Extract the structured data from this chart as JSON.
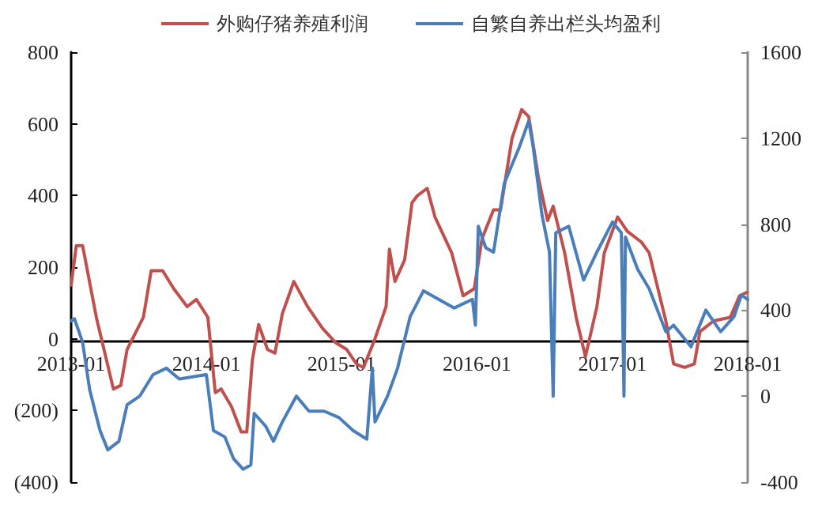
{
  "chart_data": {
    "type": "line",
    "series": [
      {
        "name": "外购仔猪养殖利润",
        "color": "#c0504d",
        "x": [
          "2013-01-01",
          "2013-01-15",
          "2013-02-01",
          "2013-03-10",
          "2013-04-25",
          "2013-05-15",
          "2013-06-01",
          "2013-07-15",
          "2013-08-05",
          "2013-09-05",
          "2013-10-05",
          "2013-11-10",
          "2013-12-05",
          "2014-01-05",
          "2014-01-25",
          "2014-02-10",
          "2014-03-10",
          "2014-04-05",
          "2014-04-20",
          "2014-05-05",
          "2014-05-22",
          "2014-06-15",
          "2014-07-05",
          "2014-07-25",
          "2014-08-25",
          "2014-10-01",
          "2014-11-10",
          "2014-12-15",
          "2015-01-15",
          "2015-02-10",
          "2015-03-01",
          "2015-04-01",
          "2015-05-01",
          "2015-05-10",
          "2015-05-25",
          "2015-06-20",
          "2015-07-10",
          "2015-07-25",
          "2015-08-20",
          "2015-09-10",
          "2015-10-25",
          "2015-11-25",
          "2015-12-25",
          "2016-01-15",
          "2016-02-15",
          "2016-03-05",
          "2016-04-05",
          "2016-05-01",
          "2016-05-20",
          "2016-06-15",
          "2016-07-10",
          "2016-07-25",
          "2016-08-25",
          "2016-09-25",
          "2016-10-20",
          "2016-11-20",
          "2016-12-10",
          "2017-01-15",
          "2017-02-10",
          "2017-03-20",
          "2017-04-10",
          "2017-05-25",
          "2017-06-15",
          "2017-07-15",
          "2017-08-10",
          "2017-08-25",
          "2017-10-01",
          "2017-11-15",
          "2017-12-10",
          "2017-12-30"
        ],
        "values": [
          150,
          260,
          260,
          60,
          -140,
          -130,
          -30,
          60,
          190,
          190,
          140,
          90,
          110,
          60,
          -150,
          -140,
          -190,
          -260,
          -260,
          -60,
          40,
          -30,
          -40,
          70,
          160,
          90,
          30,
          -10,
          -30,
          -70,
          -80,
          0,
          90,
          250,
          160,
          220,
          380,
          400,
          420,
          340,
          240,
          120,
          140,
          280,
          360,
          360,
          560,
          640,
          620,
          450,
          330,
          370,
          240,
          60,
          -50,
          90,
          240,
          340,
          300,
          270,
          240,
          50,
          -70,
          -80,
          -70,
          20,
          50,
          60,
          120,
          130
        ]
      },
      {
        "name": "自繁自养出栏头均盈利",
        "color": "#4a7ebb",
        "axis": "y2",
        "x": [
          "2013-01-01",
          "2013-01-10",
          "2013-02-01",
          "2013-02-20",
          "2013-03-20",
          "2013-04-10",
          "2013-05-10",
          "2013-06-01",
          "2013-07-05",
          "2013-08-10",
          "2013-09-15",
          "2013-10-20",
          "2014-01-01",
          "2014-01-20",
          "2014-02-20",
          "2014-03-15",
          "2014-04-10",
          "2014-05-01",
          "2014-05-10",
          "2014-06-10",
          "2014-07-01",
          "2014-07-25",
          "2014-09-01",
          "2014-10-05",
          "2014-11-15",
          "2014-12-25",
          "2015-02-01",
          "2015-03-10",
          "2015-03-25",
          "2015-04-01",
          "2015-05-05",
          "2015-06-01",
          "2015-07-05",
          "2015-08-10",
          "2015-09-20",
          "2015-11-01",
          "2015-12-20",
          "2015-12-28",
          "2016-01-05",
          "2016-01-25",
          "2016-02-15",
          "2016-03-15",
          "2016-04-25",
          "2016-05-20",
          "2016-06-01",
          "2016-06-25",
          "2016-07-15",
          "2016-07-25",
          "2016-08-01",
          "2016-09-05",
          "2016-10-15",
          "2016-11-20",
          "2017-01-01",
          "2017-01-25",
          "2017-02-01",
          "2017-02-05",
          "2017-03-10",
          "2017-04-10",
          "2017-05-25",
          "2017-06-15",
          "2017-08-01",
          "2017-09-10",
          "2017-10-20",
          "2017-11-25",
          "2017-12-15",
          "2018-01-01"
        ],
        "values": [
          350,
          360,
          250,
          30,
          -160,
          -250,
          -210,
          -40,
          0,
          100,
          130,
          80,
          100,
          -160,
          -190,
          -290,
          -340,
          -320,
          -80,
          -140,
          -210,
          -120,
          0,
          -70,
          -70,
          -100,
          -160,
          -200,
          130,
          -120,
          0,
          130,
          370,
          490,
          450,
          410,
          450,
          330,
          790,
          690,
          670,
          990,
          1160,
          1280,
          1160,
          840,
          670,
          0,
          760,
          790,
          540,
          670,
          810,
          760,
          0,
          740,
          590,
          500,
          300,
          330,
          230,
          400,
          300,
          370,
          470,
          450
        ]
      }
    ],
    "xlim": [
      "2013-01-01",
      "2018-01-01"
    ],
    "xticks": [
      "2013-01",
      "2014-01",
      "2015-01",
      "2016-01",
      "2017-01",
      "2018-01"
    ],
    "ylim": [
      -400,
      800
    ],
    "yticks": [
      {
        "value": -400,
        "label": "(400)"
      },
      {
        "value": -200,
        "label": "(200)"
      },
      0,
      200,
      400,
      600,
      800
    ],
    "y2lim": [
      -400,
      1600
    ],
    "y2ticks": [
      -400,
      0,
      400,
      800,
      1200,
      1600
    ],
    "legend": "top",
    "grid": false
  }
}
